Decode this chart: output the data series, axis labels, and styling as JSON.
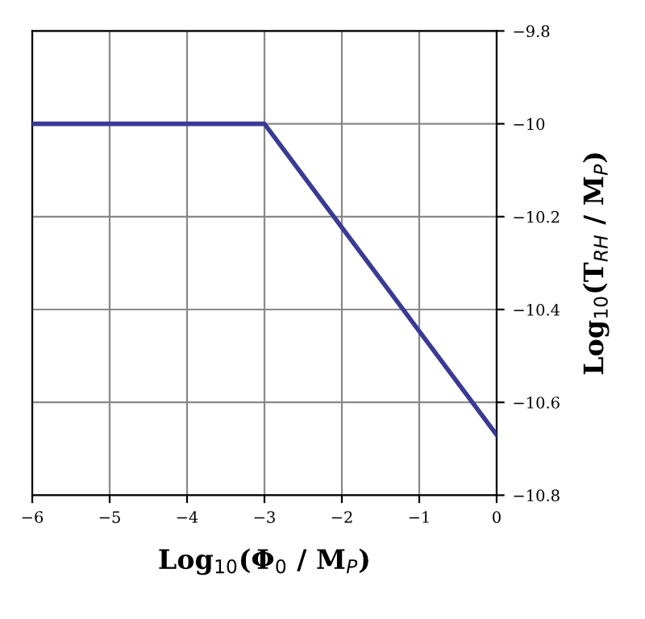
{
  "chart_data": {
    "type": "line",
    "xlabel": "Log$_{10}$(Φ$_{0}$ / M$_{P}$)",
    "ylabel": "Log$_{10}$(T$_{RH}$ / M$_{P}$)",
    "x": [
      -6,
      -3,
      0
    ],
    "series": [
      {
        "color": "#3a3a96",
        "values": [
          -10,
          -10,
          -10.67
        ]
      }
    ],
    "xlim": [
      -6,
      0
    ],
    "ylim": [
      -10.8,
      -9.8
    ],
    "xticks": [
      {
        "value": -6,
        "label": "−6"
      },
      {
        "value": -5,
        "label": "−5"
      },
      {
        "value": -4,
        "label": "−4"
      },
      {
        "value": -3,
        "label": "−3"
      },
      {
        "value": -2,
        "label": "−2"
      },
      {
        "value": -1,
        "label": "−1"
      },
      0
    ],
    "yticks": [
      {
        "value": -10.8,
        "label": "−10.8"
      },
      {
        "value": -10.6,
        "label": "−10.6"
      },
      {
        "value": -10.4,
        "label": "−10.4"
      },
      {
        "value": -10.2,
        "label": "−10.2"
      },
      {
        "value": -10,
        "label": "−10"
      },
      {
        "value": -9.8,
        "label": "−9.8"
      }
    ],
    "grid": true,
    "marker": "none",
    "line_style": "solid"
  }
}
